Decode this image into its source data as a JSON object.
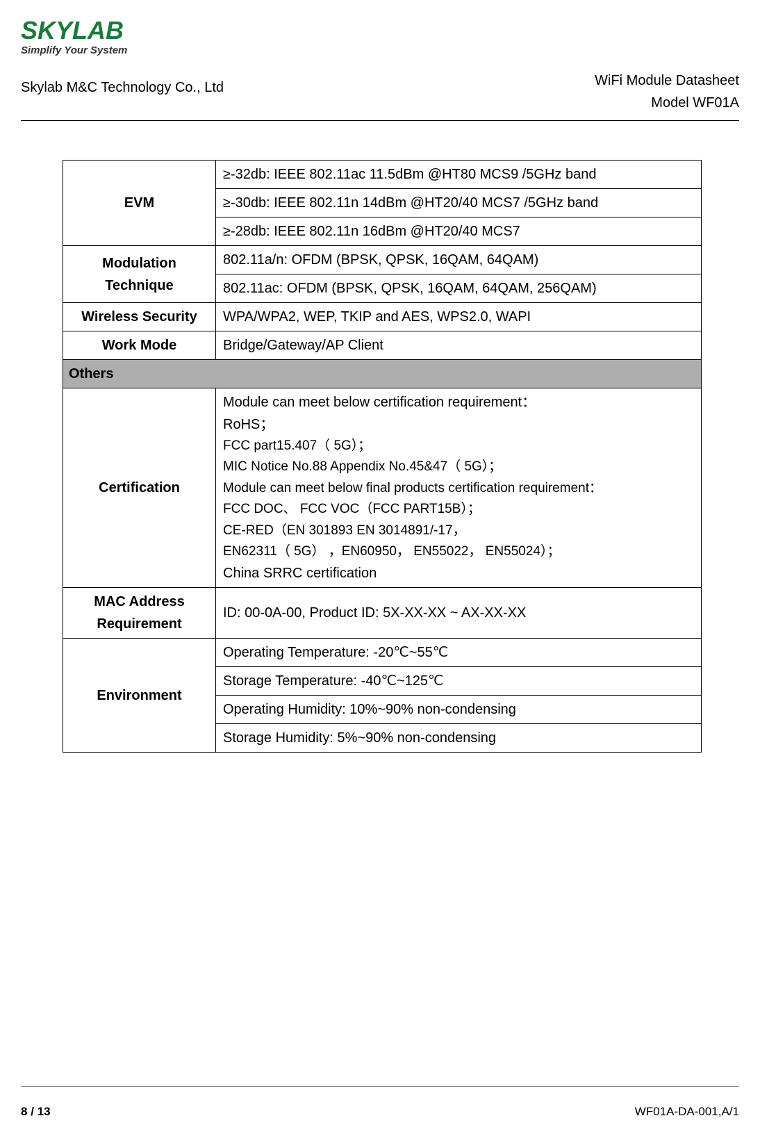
{
  "logo": {
    "brand": "SKYLAB",
    "tagline": "Simplify Your System",
    "brand_color": "#1a7a3c",
    "tagline_color": "#333333",
    "brand_fontsize": 36,
    "tagline_fontsize": 15
  },
  "header": {
    "company": "Skylab M&C Technology Co., Ltd",
    "right_line1": "WiFi Module Datasheet",
    "right_line2": "Model WF01A",
    "fontsize": 20
  },
  "table": {
    "fontsize": 20,
    "border_color": "#000000",
    "section_bg": "#adadad",
    "rows": {
      "evm": {
        "label": "EVM",
        "r1": "≥-32db: IEEE 802.11ac 11.5dBm @HT80 MCS9 /5GHz band",
        "r2": "≥-30db: IEEE 802.11n 14dBm @HT20/40 MCS7 /5GHz band",
        "r3": "≥-28db: IEEE 802.11n 16dBm @HT20/40 MCS7"
      },
      "modulation": {
        "label_l1": "Modulation",
        "label_l2": "Technique",
        "r1": "802.11a/n: OFDM (BPSK, QPSK, 16QAM, 64QAM)",
        "r2": "802.11ac: OFDM (BPSK, QPSK, 16QAM, 64QAM, 256QAM)"
      },
      "security": {
        "label": "Wireless Security",
        "value": "WPA/WPA2, WEP, TKIP and AES, WPS2.0, WAPI"
      },
      "workmode": {
        "label": "Work Mode",
        "value": "Bridge/Gateway/AP Client"
      },
      "section_others": "Others",
      "certification": {
        "label": "Certification",
        "l1": "Module can meet below certification requirement：",
        "l2": "RoHS；",
        "l3": "FCC part15.407（ 5G）；",
        "l4": "MIC Notice No.88 Appendix No.45&47（ 5G）；",
        "l5": "Module can meet below final products certification requirement：",
        "l6": "FCC DOC、  FCC VOC（FCC PART15B）；",
        "l7": "CE-RED（EN 301893 EN  3014891/-17，",
        "l8": "EN62311（  5G） ，EN60950，  EN55022， EN55024）；",
        "l9": "China SRRC certification"
      },
      "mac": {
        "label_l1": "MAC Address",
        "label_l2": "Requirement",
        "value": "ID: 00-0A-00,    Product ID: 5X-XX-XX    ~    AX-XX-XX"
      },
      "environment": {
        "label": "Environment",
        "r1": "Operating Temperature: -20℃~55℃",
        "r2": "Storage Temperature: -40℃~125℃",
        "r3": "Operating Humidity: 10%~90% non-condensing",
        "r4": "Storage Humidity: 5%~90% non-condensing"
      }
    }
  },
  "footer": {
    "page_current": "8",
    "page_sep": " / ",
    "page_total": "13",
    "doc_id": "WF01A-DA-001,A/1",
    "fontsize": 17
  }
}
